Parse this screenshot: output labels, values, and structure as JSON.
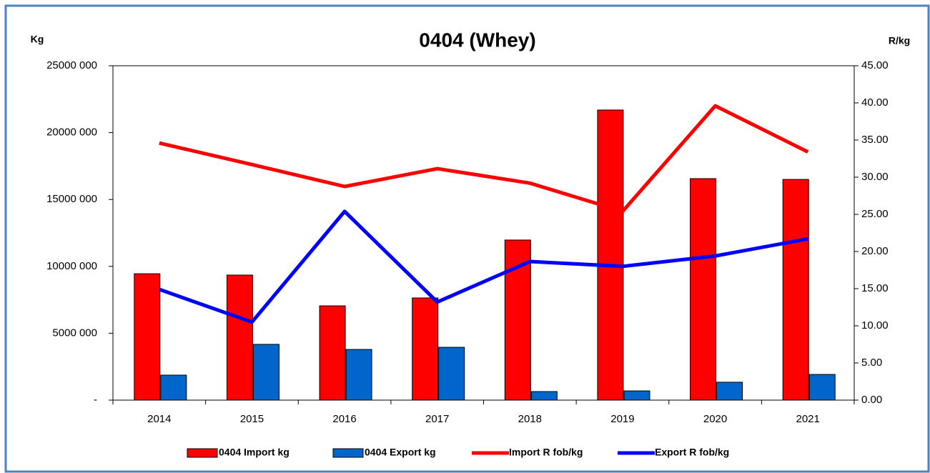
{
  "chart_data": {
    "type": "bar_line",
    "title": "0404 (Whey)",
    "y_label": "Kg",
    "y2_label": "R/kg",
    "categories": [
      "2014",
      "2015",
      "2016",
      "2017",
      "2018",
      "2019",
      "2020",
      "2021"
    ],
    "series": [
      {
        "name": "0404 Import kg",
        "color": "#ff0000",
        "kind": "bar",
        "values": [
          9450000,
          9350000,
          7050000,
          7640000,
          11970000,
          21690000,
          16560000,
          16500000
        ]
      },
      {
        "name": "0404 Export kg",
        "color": "#0066cc",
        "kind": "bar",
        "values": [
          1870000,
          4170000,
          3790000,
          3950000,
          640000,
          690000,
          1340000,
          1920000
        ]
      },
      {
        "name": "Import R fob/kg",
        "color": "#ff0000",
        "kind": "line",
        "axis": "y2",
        "values": [
          34.6,
          31.7,
          28.75,
          31.15,
          29.2,
          25.4,
          39.6,
          33.4
        ]
      },
      {
        "name": "Export R fob/kg",
        "color": "#0000ff",
        "kind": "line",
        "axis": "y2",
        "values": [
          14.9,
          10.5,
          25.4,
          13.2,
          18.65,
          18.0,
          19.4,
          21.7
        ]
      }
    ],
    "ylim": [
      0,
      25000000
    ],
    "yticks": [
      {
        "value": 0,
        "label": "-"
      },
      {
        "value": 5000000,
        "label": "5000 000"
      },
      {
        "value": 10000000,
        "label": "10000 000"
      },
      {
        "value": 15000000,
        "label": "15000 000"
      },
      {
        "value": 20000000,
        "label": "20000 000"
      },
      {
        "value": 25000000,
        "label": "25000 000"
      }
    ],
    "y2lim": [
      0,
      45
    ],
    "y2ticks": [
      {
        "value": 0,
        "label": "0.00"
      },
      {
        "value": 5,
        "label": "5.00"
      },
      {
        "value": 10,
        "label": "10.00"
      },
      {
        "value": 15,
        "label": "15.00"
      },
      {
        "value": 20,
        "label": "20.00"
      },
      {
        "value": 25,
        "label": "25.00"
      },
      {
        "value": 30,
        "label": "30.00"
      },
      {
        "value": 35,
        "label": "35.00"
      },
      {
        "value": 40,
        "label": "40.00"
      },
      {
        "value": 45,
        "label": "45.00"
      }
    ],
    "legend": "bottom"
  }
}
